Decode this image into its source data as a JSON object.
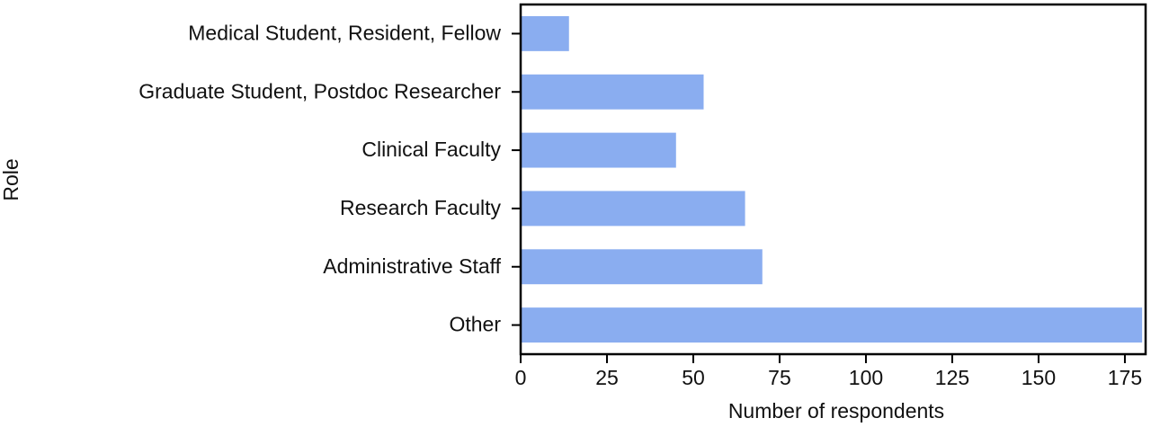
{
  "chart_data": {
    "type": "barh",
    "xlabel": "Number of respondents",
    "ylabel": "Role",
    "categories": [
      "Medical Student, Resident, Fellow",
      "Graduate Student, Postdoc Researcher",
      "Clinical Faculty",
      "Research Faculty",
      "Administrative Staff",
      "Other"
    ],
    "values": [
      14,
      53,
      45,
      65,
      70,
      180
    ],
    "color": "#8aadf0",
    "xlim": [
      0,
      181
    ],
    "xticks": [
      0,
      25,
      50,
      75,
      100,
      125,
      150,
      175
    ]
  }
}
